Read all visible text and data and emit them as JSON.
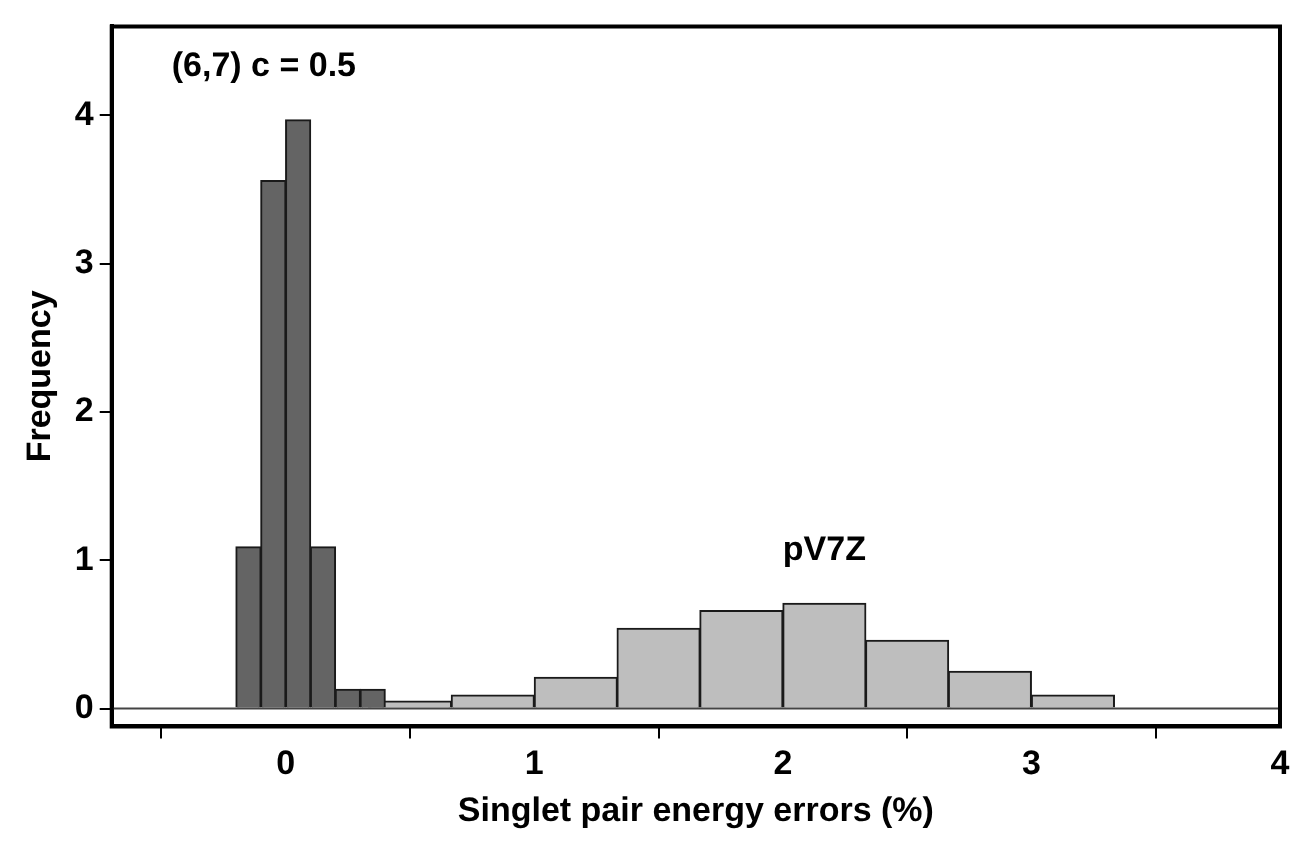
{
  "chart_data": {
    "type": "bar",
    "xlabel": "Singlet pair energy errors (%)",
    "ylabel": "Frequency",
    "xlim": [
      -0.7,
      4
    ],
    "ylim": [
      -0.12,
      4.6
    ],
    "xticks": [
      0,
      1,
      2,
      3,
      4
    ],
    "yticks": [
      0,
      1,
      2,
      3,
      4
    ],
    "grid": false,
    "legend": false,
    "ref_lines": [
      {
        "axis": "y",
        "value": 0,
        "color": "#444444"
      }
    ],
    "series": [
      {
        "name": "(6,7) c = 0.5",
        "color": "#646464",
        "x": [
          -0.15,
          -0.05,
          0.05,
          0.15,
          0.25,
          0.35
        ],
        "values": [
          1.09,
          3.56,
          3.97,
          1.09,
          0.13,
          0.13
        ]
      },
      {
        "name": "pV7Z",
        "color": "#bebebe",
        "x": [
          0.5,
          0.833,
          1.167,
          1.5,
          1.833,
          2.167,
          2.5,
          2.833,
          3.167
        ],
        "values": [
          0.05,
          0.09,
          0.21,
          0.54,
          0.66,
          0.71,
          0.46,
          0.25,
          0.09
        ]
      }
    ]
  }
}
